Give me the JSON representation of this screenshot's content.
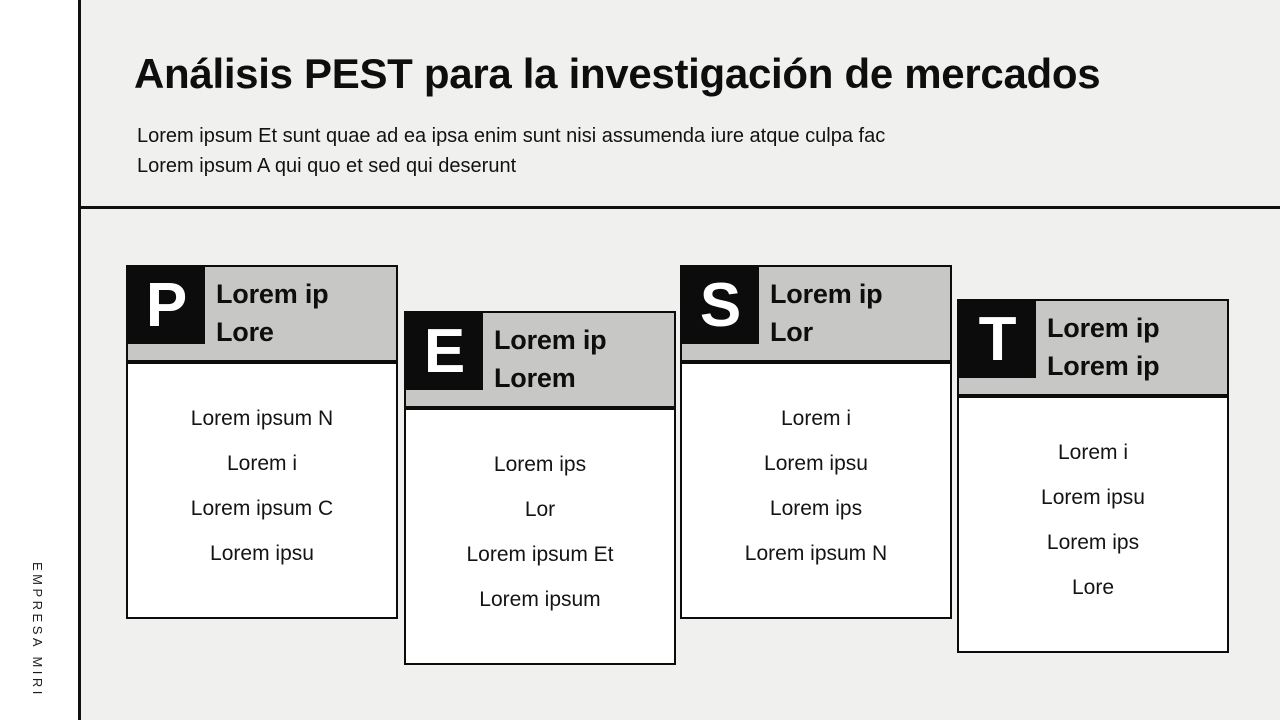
{
  "slide": {
    "brand": "EMPRESA MIRI",
    "title": "Análisis PEST para la investigación de mercados",
    "subtitle_line1": "Lorem ipsum Et sunt quae ad ea ipsa enim sunt nisi assumenda iure atque culpa fac",
    "subtitle_line2": "Lorem ipsum A qui quo et sed qui deserunt"
  },
  "colors": {
    "page_background": "#f0f0ee",
    "sidebar_background": "#ffffff",
    "card_header_gray": "#c7c7c5",
    "ink_black": "#0c0c0c",
    "card_body_white": "#ffffff"
  },
  "cards": [
    {
      "letter": "P",
      "title_line1": "Lorem ip",
      "title_line2": "Lore",
      "items": [
        "Lorem ipsum N",
        "Lorem i",
        "Lorem ipsum C",
        "Lorem ipsu"
      ]
    },
    {
      "letter": "E",
      "title_line1": "Lorem ip",
      "title_line2": "Lorem",
      "items": [
        "Lorem ips",
        "Lor",
        "Lorem ipsum Et",
        "Lorem ipsum"
      ]
    },
    {
      "letter": "S",
      "title_line1": "Lorem ip",
      "title_line2": "Lor",
      "items": [
        "Lorem i",
        "Lorem ipsu",
        "Lorem ips",
        "Lorem ipsum N"
      ]
    },
    {
      "letter": "T",
      "title_line1": "Lorem ip",
      "title_line2": "Lorem ip",
      "items": [
        "Lorem i",
        "Lorem ipsu",
        "Lorem ips",
        "Lore"
      ]
    }
  ]
}
